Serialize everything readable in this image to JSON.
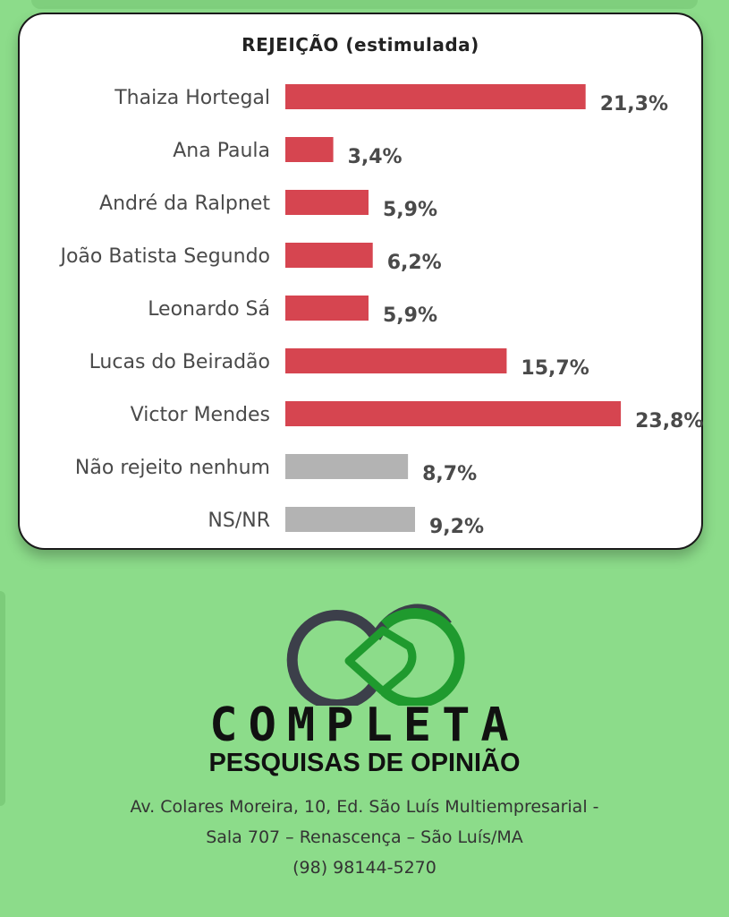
{
  "chart_data": {
    "type": "bar",
    "orientation": "horizontal",
    "title": "REJEIÇÃO (estimulada)",
    "categories": [
      "Thaiza Hortegal",
      "Ana Paula",
      "André da Ralpnet",
      "João Batista Segundo",
      "Leonardo Sá",
      "Lucas do Beiradão",
      "Victor Mendes",
      "Não rejeito nenhum",
      "NS/NR"
    ],
    "values": [
      21.3,
      3.4,
      5.9,
      6.2,
      5.9,
      15.7,
      23.8,
      8.7,
      9.2
    ],
    "value_labels": [
      "21,3%",
      "3,4%",
      "5,9%",
      "6,2%",
      "5,9%",
      "15,7%",
      "23,8%",
      "8,7%",
      "9,2%"
    ],
    "bar_colors": [
      "#d64550",
      "#d64550",
      "#d64550",
      "#d64550",
      "#d64550",
      "#d64550",
      "#d64550",
      "#b3b3b3",
      "#b3b3b3"
    ],
    "xlim": [
      0,
      25
    ],
    "grid": false,
    "legend": "none"
  },
  "brand": {
    "name": "COMPLETA",
    "tagline": "PESQUISAS DE OPINIÃO",
    "logo_colors": {
      "dark": "#3c3f4a",
      "green": "#1f9a2e"
    }
  },
  "address": {
    "line1": "Av. Colares Moreira, 10, Ed. São Luís Multiempresarial -",
    "line2": "Sala 707 – Renascença – São Luís/MA",
    "phone": "(98) 98144-5270"
  },
  "colors": {
    "background": "#8cdc8a",
    "card": "#ffffff"
  }
}
